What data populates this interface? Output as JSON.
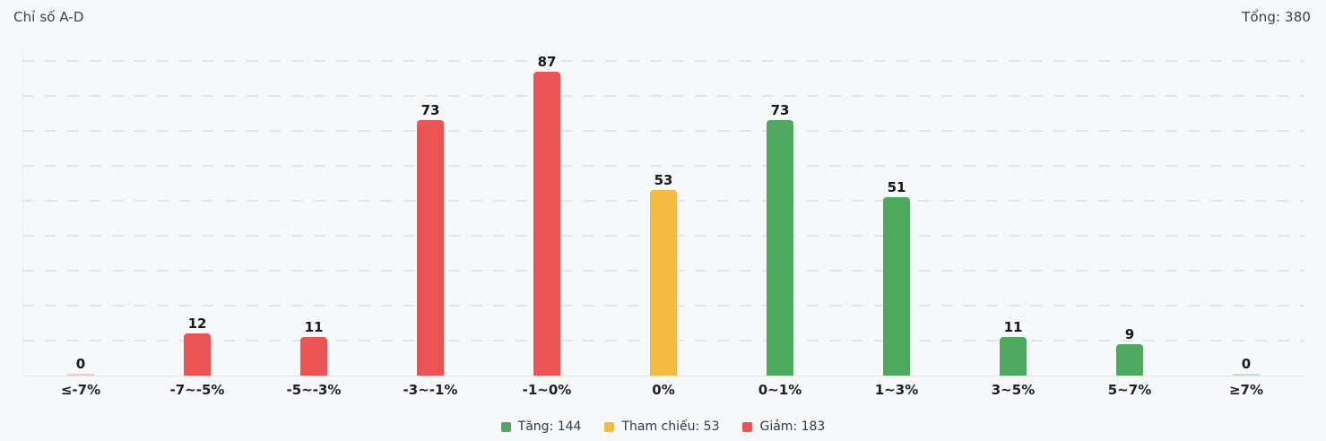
{
  "header": {
    "title": "Chỉ số A-D",
    "total_label": "Tổng: 380"
  },
  "colors": {
    "up": "#4fa85f",
    "reference": "#f3bb41",
    "down": "#ea5455",
    "background": "#f7f8f9",
    "gridline": "#e4e5eb"
  },
  "chart_data": {
    "type": "bar",
    "title": "Chỉ số A-D",
    "categories": [
      "≤-7%",
      "-7~-5%",
      "-5~-3%",
      "-3~-1%",
      "-1~0%",
      "0%",
      "0~1%",
      "1~3%",
      "3~5%",
      "5~7%",
      "≥7%"
    ],
    "values": [
      0,
      12,
      11,
      73,
      87,
      53,
      73,
      51,
      11,
      9,
      0
    ],
    "groups": [
      "down",
      "down",
      "down",
      "down",
      "down",
      "reference",
      "up",
      "up",
      "up",
      "up",
      "up"
    ],
    "xlabel": "",
    "ylabel": "",
    "ylim": [
      0,
      90
    ],
    "grid_step": 10,
    "grid": "dashed-horizontal",
    "legend_position": "bottom-center",
    "total": 380
  },
  "legend": {
    "items": [
      {
        "name": "up",
        "label": "Tăng: 144",
        "color": "#4fa85f"
      },
      {
        "name": "reference",
        "label": "Tham chiếu: 53",
        "color": "#f3bb41"
      },
      {
        "name": "down",
        "label": "Giảm: 183",
        "color": "#ea5455"
      }
    ]
  }
}
